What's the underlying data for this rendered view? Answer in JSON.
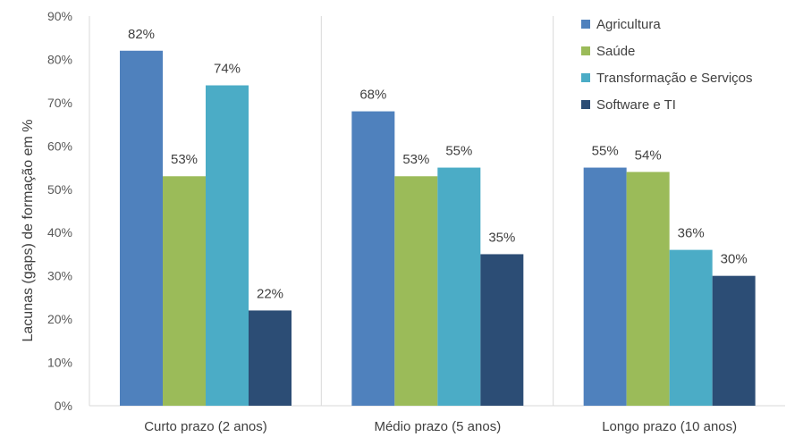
{
  "chart_data": {
    "type": "bar",
    "categories": [
      "Curto prazo (2 anos)",
      "Médio prazo (5 anos)",
      "Longo prazo (10 anos)"
    ],
    "series": [
      {
        "name": "Agricultura",
        "values": [
          82,
          68,
          55
        ],
        "color": "#4F81BD"
      },
      {
        "name": "Saúde",
        "values": [
          53,
          53,
          54
        ],
        "color": "#9BBB59"
      },
      {
        "name": "Transformação e Serviços",
        "values": [
          74,
          55,
          36
        ],
        "color": "#4BACC6"
      },
      {
        "name": "Software e TI",
        "values": [
          22,
          35,
          30
        ],
        "color": "#2C4D75"
      }
    ],
    "value_suffix": "%",
    "ylabel": "Lacunas (gaps) de formação em %",
    "xlabel": "",
    "ylim": [
      0,
      90
    ],
    "yticks": [
      0,
      10,
      20,
      30,
      40,
      50,
      60,
      70,
      80,
      90
    ],
    "ytick_labels": [
      "0%",
      "10%",
      "20%",
      "30%",
      "40%",
      "50%",
      "60%",
      "70%",
      "80%",
      "90%"
    ],
    "grid": false,
    "category_separators": true,
    "legend_position": "top-right"
  }
}
